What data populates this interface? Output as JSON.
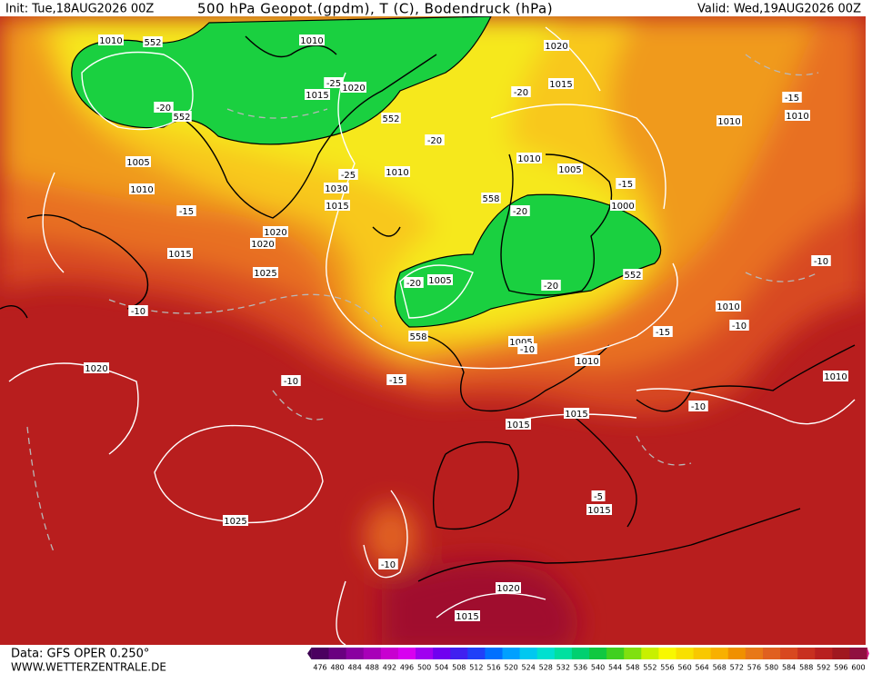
{
  "header": {
    "init": "Init: Tue,18AUG2026 00Z",
    "title": "500 hPa Geopot.(gpdm), T (C), Bodendruck (hPa)",
    "valid": "Valid: Wed,19AUG2026 00Z"
  },
  "footer": {
    "source": "Data: GFS OPER 0.250°",
    "website": "WWW.WETTERZENTRALE.DE"
  },
  "map_labels": [
    "1010",
    "552",
    "1010",
    "1020",
    "1015",
    "-20",
    "1010",
    "-15",
    "1010",
    "1015",
    "1020",
    "-25",
    "552",
    "-20",
    "552",
    "-20",
    "1005",
    "1010",
    "1010",
    "-25",
    "1030",
    "1015",
    "1010",
    "1005",
    "-15",
    "558",
    "-20",
    "1000",
    "-15",
    "1020",
    "1020",
    "1015",
    "1025",
    "-20",
    "1005",
    "-20",
    "552",
    "-10",
    "-10",
    "1010",
    "-10",
    "-15",
    "558",
    "1005",
    "-10",
    "1020",
    "-10",
    "-15",
    "1010",
    "1010",
    "-10",
    "1015",
    "1015",
    "-5",
    "1015",
    "1025",
    "-10",
    "1020",
    "1015"
  ],
  "colorbar": {
    "ticks": [
      476,
      480,
      484,
      488,
      492,
      496,
      500,
      504,
      508,
      512,
      516,
      520,
      524,
      528,
      532,
      536,
      540,
      544,
      548,
      552,
      556,
      560,
      564,
      568,
      572,
      576,
      580,
      584,
      588,
      592,
      596,
      600
    ],
    "colors": [
      "#4b0060",
      "#6a0080",
      "#8a00a0",
      "#a800b8",
      "#c800d0",
      "#d800f0",
      "#a000f0",
      "#7000f0",
      "#4020f0",
      "#2040f8",
      "#0070ff",
      "#00a0ff",
      "#00c8f0",
      "#00e0d0",
      "#00e0a0",
      "#00d070",
      "#10c840",
      "#40d020",
      "#80e010",
      "#c8f000",
      "#f8f800",
      "#f8e000",
      "#f8c800",
      "#f8b000",
      "#f09000",
      "#e87818",
      "#e06020",
      "#d84820",
      "#c83020",
      "#b82020",
      "#a01820",
      "#901040"
    ],
    "low_color": "#3c0050",
    "high_color": "#e0208f"
  }
}
